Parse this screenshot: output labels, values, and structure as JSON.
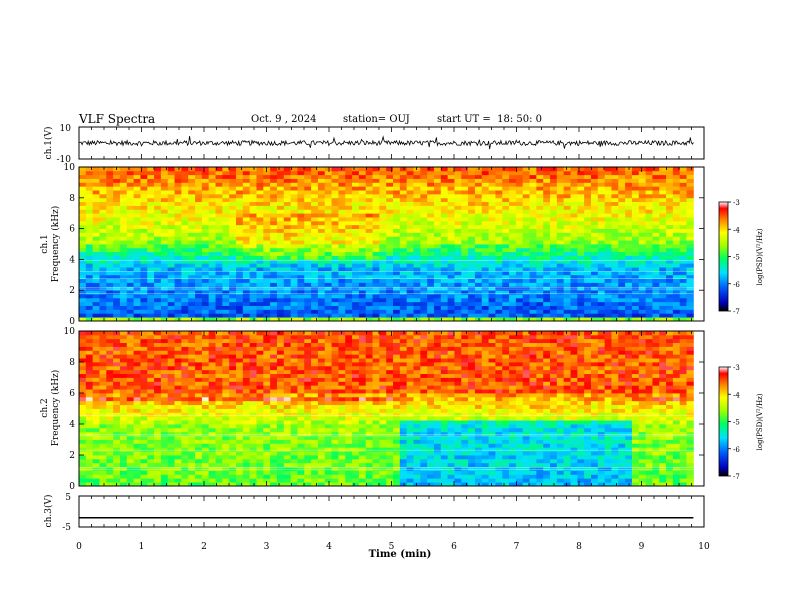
{
  "header": {
    "title": "VLF Spectra",
    "date": "Oct. 9 , 2024",
    "station": "station= OUJ",
    "start_ut": "start UT =  18: 50: 0"
  },
  "colors": {
    "colormap": [
      "#000080",
      "#0000ff",
      "#0080ff",
      "#00ffff",
      "#00ff80",
      "#80ff00",
      "#ffff00",
      "#ff8000",
      "#ff0000",
      "#ffffff"
    ],
    "trace": "#000000",
    "frame": "#000000"
  },
  "chart_data": [
    {
      "type": "line",
      "name": "ch1-waveform",
      "ylabel": "ch.1(V)",
      "ylim": [
        -10,
        10
      ],
      "y_ticks": [
        "10",
        "-10"
      ],
      "xlim": [
        0,
        10
      ],
      "x_end": 9.83,
      "description_values": {
        "mean": 0,
        "typical_amplitude": 3
      }
    },
    {
      "type": "heatmap",
      "name": "ch1-spectrogram",
      "ylabel": "ch.1\nFrequency (kHz)",
      "ylabel_lines": [
        "ch.1",
        "Frequency (kHz)"
      ],
      "ylim": [
        0,
        10
      ],
      "y_ticks": [
        "0",
        "2",
        "4",
        "6",
        "8",
        "10"
      ],
      "xlim": [
        0,
        10
      ],
      "x_end": 9.83,
      "colorbar": {
        "label": "log(PSD)(V²/Hz)",
        "range": [
          -7,
          -3
        ],
        "ticks": [
          "-3",
          "-4",
          "-5",
          "-6",
          "-7"
        ]
      }
    },
    {
      "type": "heatmap",
      "name": "ch2-spectrogram",
      "ylabel": "ch.2\nFrequency (kHz)",
      "ylabel_lines": [
        "ch.2",
        "Frequency (kHz)"
      ],
      "ylim": [
        0,
        10
      ],
      "y_ticks": [
        "0",
        "2",
        "4",
        "6",
        "8",
        "10"
      ],
      "xlim": [
        0,
        10
      ],
      "x_end": 9.83,
      "change_interval": [
        5.1,
        8.8
      ],
      "colorbar": {
        "label": "log(PSD)(V²/Hz)",
        "range": [
          -7,
          -3
        ],
        "ticks": [
          "-3",
          "-4",
          "-5",
          "-6",
          "-7"
        ]
      }
    },
    {
      "type": "line",
      "name": "ch3-waveform",
      "ylabel": "ch.3(V)",
      "ylim": [
        -5,
        5
      ],
      "y_ticks": [
        "5",
        "0",
        "-5"
      ],
      "xlim": [
        0,
        10
      ],
      "x_end": 9.83,
      "constant_value": -2
    }
  ],
  "x_axis": {
    "label": "Time  (min)",
    "ticks": [
      "0",
      "1",
      "2",
      "3",
      "4",
      "5",
      "6",
      "7",
      "8",
      "9",
      "10"
    ]
  }
}
